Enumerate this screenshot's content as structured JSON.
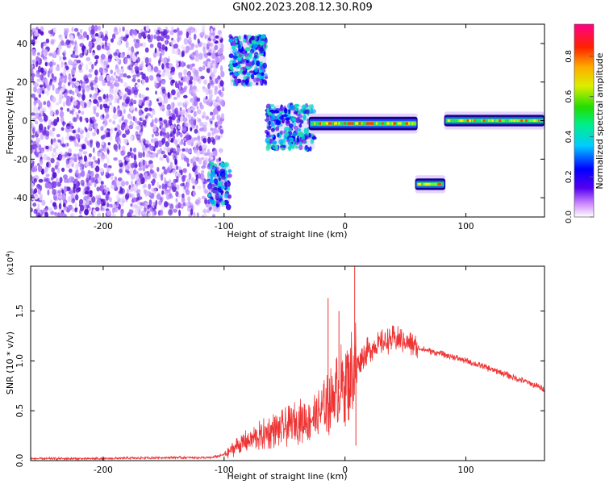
{
  "title": "GN02.2023.208.12.30.R09",
  "chart_data": [
    {
      "type": "heatmap",
      "xlabel": "Height of straight line (km)",
      "ylabel": "Frequency (Hz)",
      "xlim": [
        -260,
        165
      ],
      "ylim": [
        -50,
        50
      ],
      "xticks": [
        -200,
        -100,
        0,
        100
      ],
      "yticks": [
        -40,
        -20,
        0,
        20,
        40
      ],
      "colorbar": {
        "label": "Normalized spectral amplitude",
        "range": [
          0,
          0.96
        ],
        "ticks": [
          "0.0",
          "0.2",
          "0.4",
          "0.6",
          "0.8"
        ]
      },
      "regions": [
        {
          "x": [
            -260,
            -100
          ],
          "y": [
            -50,
            48
          ],
          "amplitude": 0.1,
          "pattern": "noise"
        },
        {
          "x": [
            -113,
            -95
          ],
          "y": [
            -45,
            -22
          ],
          "amplitude": 0.2,
          "pattern": "cluster"
        },
        {
          "x": [
            -95,
            -65
          ],
          "y": [
            18,
            44
          ],
          "amplitude": 0.25,
          "pattern": "cluster"
        },
        {
          "x": [
            -65,
            -25
          ],
          "y": [
            -15,
            8
          ],
          "amplitude": 0.25,
          "pattern": "cluster"
        },
        {
          "x": [
            -30,
            60
          ],
          "y": [
            -5,
            2
          ],
          "amplitude": 0.6,
          "pattern": "band"
        },
        {
          "x": [
            58,
            83
          ],
          "y": [
            -36,
            -30
          ],
          "amplitude": 0.75,
          "pattern": "band"
        },
        {
          "x": [
            82,
            165
          ],
          "y": [
            -3,
            3
          ],
          "amplitude": 0.55,
          "pattern": "band"
        }
      ]
    },
    {
      "type": "line",
      "xlabel": "Height of straight line (km)",
      "ylabel": "SNR (10 * v/v)",
      "y_multiplier": "(x10^4)",
      "xlim": [
        -260,
        165
      ],
      "ylim": [
        0,
        1.95
      ],
      "xticks": [
        -200,
        -100,
        0,
        100
      ],
      "yticks": [
        0.0,
        0.5,
        1.0,
        1.5
      ],
      "series": [
        {
          "color": "#ee3333",
          "x": [
            -260,
            -200,
            -150,
            -110,
            -100,
            -90,
            -80,
            -70,
            -60,
            -50,
            -40,
            -30,
            -20,
            -15,
            -10,
            -5,
            0,
            5,
            10,
            15,
            20,
            30,
            40,
            50,
            60,
            70,
            80,
            90,
            100,
            110,
            120,
            130,
            140,
            150,
            160,
            165
          ],
          "values": [
            0.02,
            0.02,
            0.03,
            0.03,
            0.06,
            0.14,
            0.2,
            0.25,
            0.3,
            0.33,
            0.38,
            0.42,
            0.48,
            0.55,
            0.62,
            0.72,
            0.8,
            0.88,
            0.98,
            1.05,
            1.12,
            1.18,
            1.22,
            1.2,
            1.13,
            1.1,
            1.07,
            1.04,
            1.0,
            0.96,
            0.92,
            0.88,
            0.83,
            0.79,
            0.74,
            0.72
          ]
        }
      ],
      "spikes": [
        {
          "x": -14,
          "y": 1.63
        },
        {
          "x": -5,
          "y": 1.5
        },
        {
          "x": 8,
          "y": 1.95
        },
        {
          "x": 9,
          "y": 0.15
        }
      ]
    }
  ]
}
